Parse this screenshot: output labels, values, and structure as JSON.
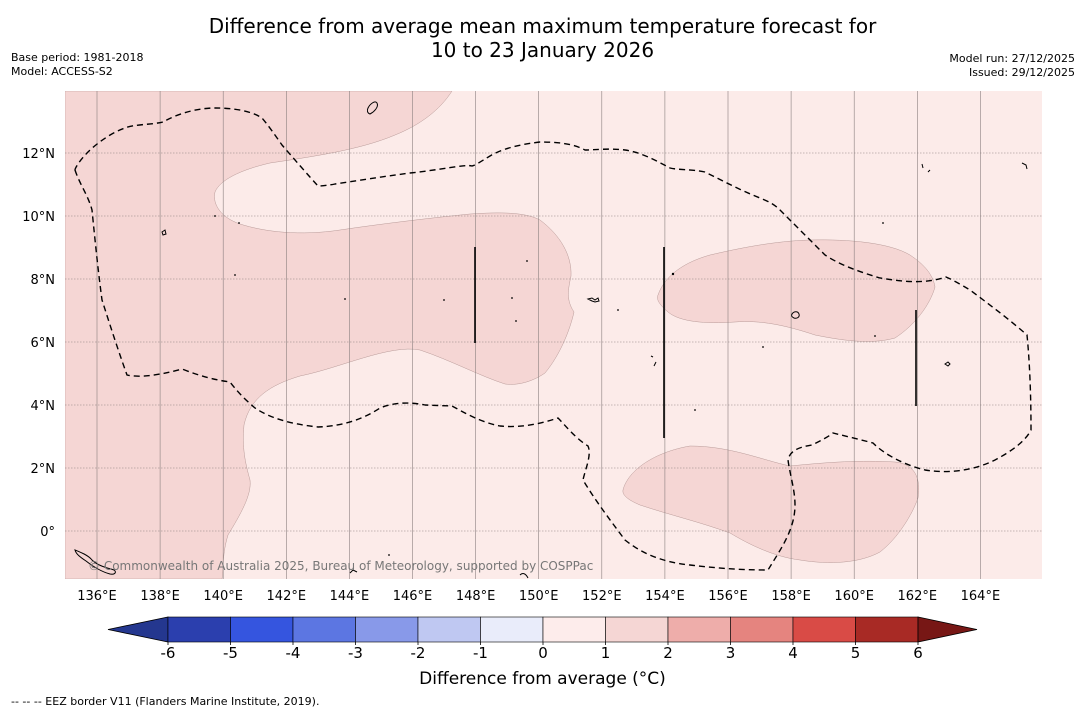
{
  "title": {
    "line1": "Difference from average mean maximum temperature forecast for",
    "line2": "10 to 23 January 2026"
  },
  "meta": {
    "base_period": "Base period: 1981-2018",
    "model": "Model: ACCESS-S2",
    "model_run": "Model run: 27/12/2025",
    "issued": "Issued: 29/12/2025"
  },
  "copyright": "© Commonwealth of Australia 2025, Bureau of Meteorology, supported by COSPPac",
  "footnote": "--  --  -- EEZ border V11 (Flanders Marine Institute, 2019).",
  "map": {
    "lon_ticks": [
      "136°E",
      "138°E",
      "140°E",
      "142°E",
      "144°E",
      "146°E",
      "148°E",
      "150°E",
      "152°E",
      "154°E",
      "156°E",
      "158°E",
      "160°E",
      "162°E",
      "164°E"
    ],
    "lat_ticks": [
      "12°N",
      "10°N",
      "8°N",
      "6°N",
      "4°N",
      "2°N",
      "0°"
    ],
    "colors": {
      "band_0_1": "#fcebe9",
      "band_1_2": "#f5d6d4"
    }
  },
  "colorbar": {
    "title": "Difference from average (°C)",
    "tick_labels": [
      "-6",
      "-5",
      "-4",
      "-3",
      "-2",
      "-1",
      "0",
      "1",
      "2",
      "3",
      "4",
      "5",
      "6"
    ],
    "colors": [
      "#24378f",
      "#2b3fae",
      "#3555df",
      "#5c76e2",
      "#8899e9",
      "#bfc8f2",
      "#e9ecfa",
      "#fdeceb",
      "#f5d6d4",
      "#eeadaa",
      "#e5847f",
      "#d94b46",
      "#a82a25",
      "#771715"
    ]
  }
}
